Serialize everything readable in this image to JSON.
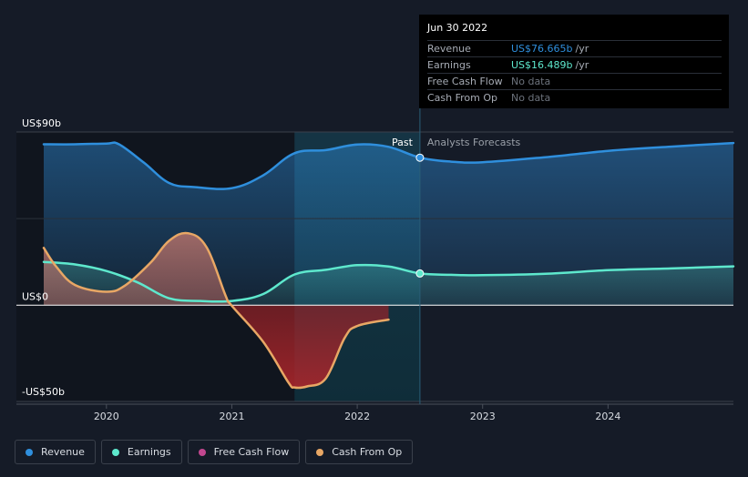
{
  "chart_data": {
    "type": "line",
    "title": "",
    "xlabel": "",
    "ylabel": "",
    "ylim": [
      -50,
      90
    ],
    "xlim": [
      2019.5,
      2025.0
    ],
    "y_ticks": [
      {
        "value": 90,
        "label": "US$90b"
      },
      {
        "value": 0,
        "label": "US$0"
      },
      {
        "value": -50,
        "label": "-US$50b"
      }
    ],
    "x_ticks": [
      {
        "value": 2020,
        "label": "2020"
      },
      {
        "value": 2021,
        "label": "2021"
      },
      {
        "value": 2022,
        "label": "2022"
      },
      {
        "value": 2023,
        "label": "2023"
      },
      {
        "value": 2024,
        "label": "2024"
      }
    ],
    "past_label": "Past",
    "forecast_label": "Analysts Forecasts",
    "divider_x": 2022.5,
    "shaded_start_x": 2021.5,
    "series": [
      {
        "name": "Revenue",
        "color": "#2f8fdd",
        "x": [
          2019.5,
          2019.75,
          2020.0,
          2020.1,
          2020.3,
          2020.5,
          2020.7,
          2021.0,
          2021.25,
          2021.5,
          2021.75,
          2022.0,
          2022.25,
          2022.5,
          2022.75,
          2023.0,
          2023.5,
          2024.0,
          2024.5,
          2025.0
        ],
        "values": [
          83.6,
          83.6,
          84,
          83.6,
          74,
          63.5,
          61.4,
          60.8,
          67.5,
          79,
          80.6,
          83.5,
          82.3,
          76.7,
          74.6,
          74.3,
          76.9,
          80.2,
          82.4,
          84.3
        ]
      },
      {
        "name": "Earnings",
        "color": "#5ee8cd",
        "x": [
          2019.5,
          2019.75,
          2020.0,
          2020.25,
          2020.5,
          2020.75,
          2021.0,
          2021.25,
          2021.5,
          2021.75,
          2022.0,
          2022.25,
          2022.5,
          2022.75,
          2023.0,
          2023.5,
          2024.0,
          2024.5,
          2025.0
        ],
        "values": [
          22.5,
          21.2,
          17.8,
          11.8,
          3.6,
          2.2,
          2.2,
          5.8,
          16,
          18.4,
          20.8,
          20.1,
          16.5,
          15.8,
          15.6,
          16.3,
          18.2,
          19.1,
          20.2
        ]
      },
      {
        "name": "Free Cash Flow",
        "color": "#c2478f",
        "x": [],
        "values": []
      },
      {
        "name": "Cash From Op",
        "color": "#e8a765",
        "x": [
          2019.5,
          2019.6,
          2019.75,
          2020.0,
          2020.15,
          2020.35,
          2020.5,
          2020.65,
          2020.8,
          2020.95,
          2021.0,
          2021.25,
          2021.45,
          2021.5,
          2021.6,
          2021.75,
          2021.9,
          2022.0,
          2022.25
        ],
        "values": [
          29.8,
          20,
          10.5,
          7,
          10.3,
          22,
          33.5,
          37.4,
          30,
          5,
          -0.3,
          -19,
          -40,
          -42.7,
          -42.2,
          -38,
          -17,
          -10.8,
          -7.5
        ]
      }
    ],
    "highlight_points": [
      {
        "series": "Revenue",
        "x": 2022.5,
        "y": 76.665
      },
      {
        "series": "Earnings",
        "x": 2022.5,
        "y": 16.489
      }
    ]
  },
  "tooltip": {
    "date": "Jun 30 2022",
    "rows": [
      {
        "name": "Revenue",
        "value": "US$76.665b",
        "unit": "/yr",
        "color": "#2f8fdd"
      },
      {
        "name": "Earnings",
        "value": "US$16.489b",
        "unit": "/yr",
        "color": "#5ee8cd"
      },
      {
        "name": "Free Cash Flow",
        "value": "No data",
        "unit": "",
        "color": "#6c727c"
      },
      {
        "name": "Cash From Op",
        "value": "No data",
        "unit": "",
        "color": "#6c727c"
      }
    ]
  },
  "legend": [
    {
      "label": "Revenue",
      "color": "#2f8fdd"
    },
    {
      "label": "Earnings",
      "color": "#5ee8cd"
    },
    {
      "label": "Free Cash Flow",
      "color": "#c2478f"
    },
    {
      "label": "Cash From Op",
      "color": "#e8a765"
    }
  ]
}
